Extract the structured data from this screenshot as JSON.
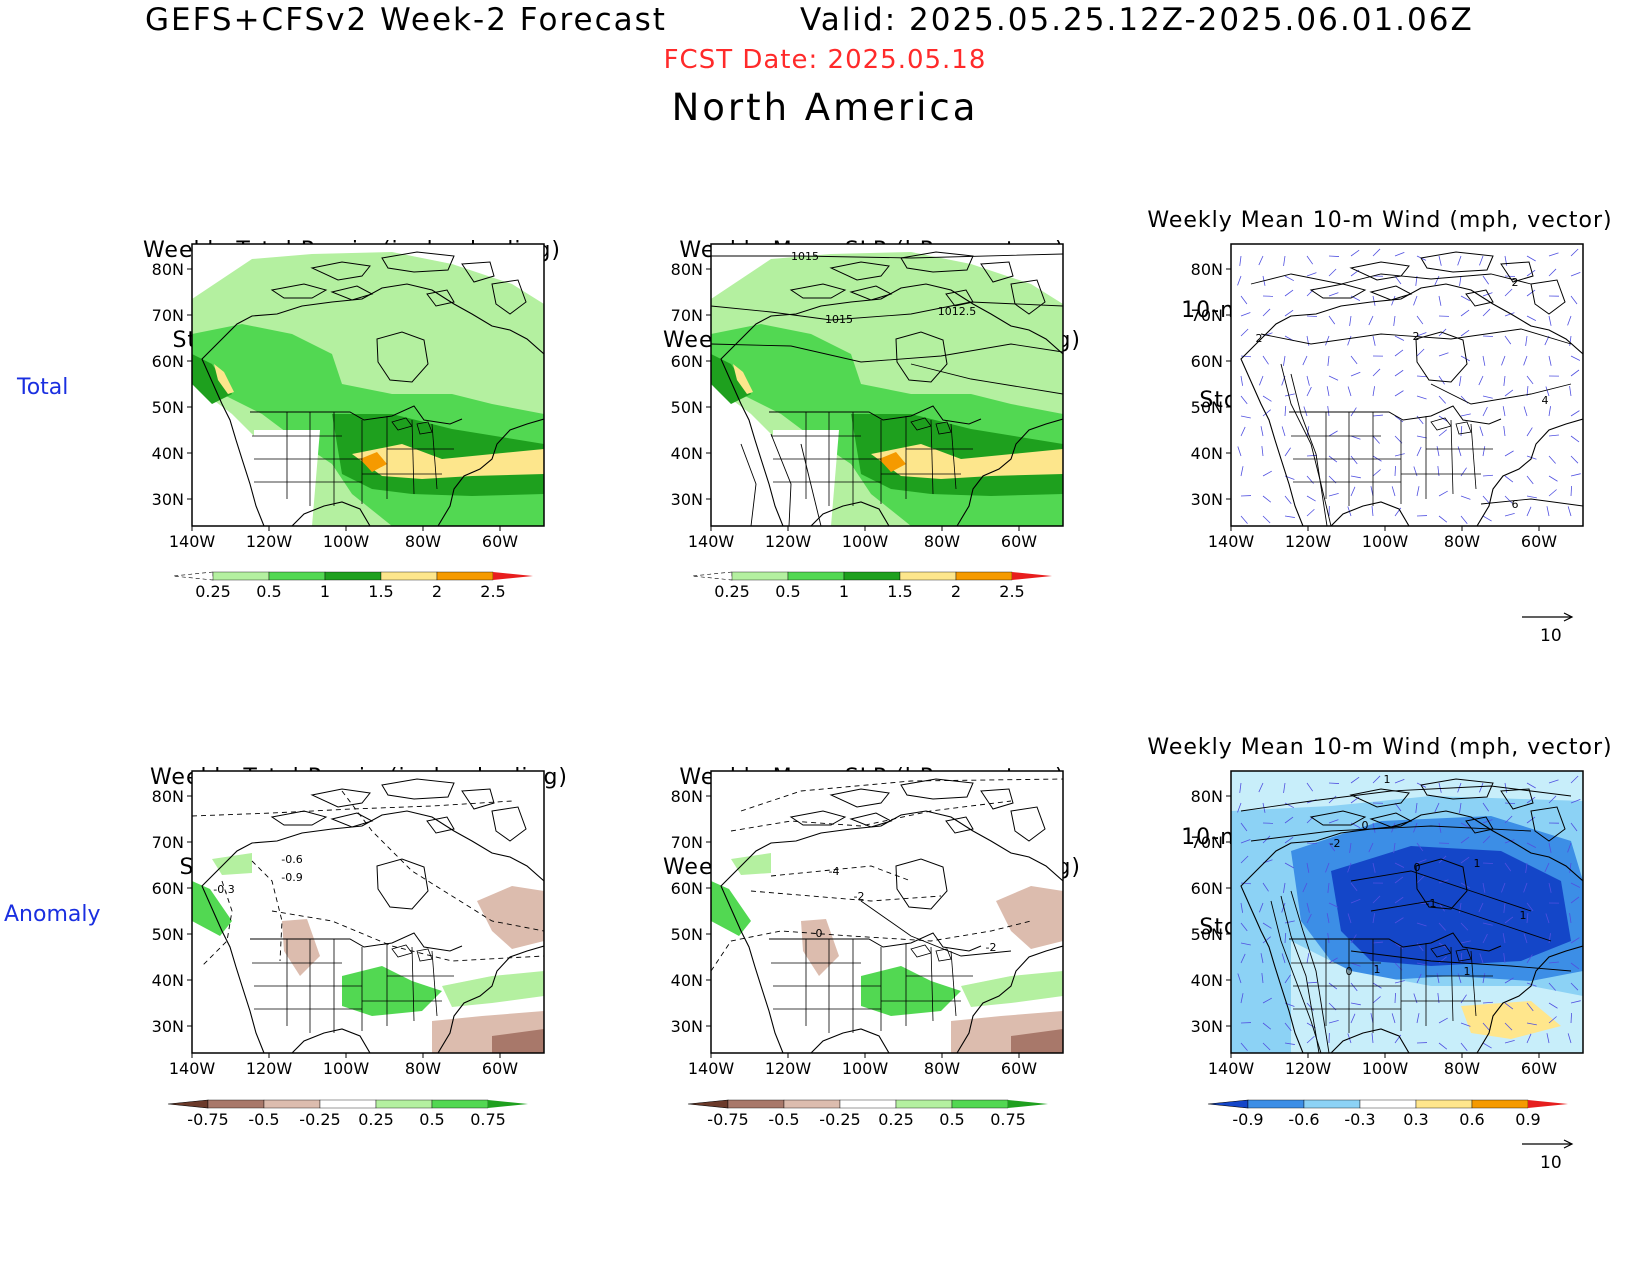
{
  "header": {
    "title_left": "GEFS+CFSv2 Week-2 Forecast",
    "title_right": "Valid: 2025.05.25.12Z-2025.06.01.06Z",
    "fcst_date": "FCST Date: 2025.05.18",
    "region": "North America"
  },
  "colors": {
    "fcst_date": "#ff2a2a",
    "row_label": "#1a2fe0",
    "vector": "#5050e0"
  },
  "rows": [
    {
      "label": "Total"
    },
    {
      "label": "Anomaly"
    }
  ],
  "axes": {
    "lat_ticks": [
      "80N",
      "70N",
      "60N",
      "50N",
      "40N",
      "30N"
    ],
    "lon_ticks": [
      "140W",
      "120W",
      "100W",
      "80W",
      "60W"
    ]
  },
  "panels": [
    {
      "id": "total-precip",
      "title_lines": [
        "Weekly Total Precip (inch, shading)",
        "Storm Track Density (contour)"
      ]
    },
    {
      "id": "total-slp",
      "title_lines": [
        "Weekly Mean SLP (hPa, contour)",
        "Weekly Total Precip (inch, shading)"
      ],
      "contour_labels": [
        "1015",
        "1015",
        "1012.5"
      ]
    },
    {
      "id": "total-wind",
      "title_lines": [
        "Weekly Mean 10-m Wind (mph, vector)",
        "10-m Wind Speed (mph, contour)",
        "Storm Track Density (shading)"
      ],
      "contour_labels": [
        "2",
        "2",
        "2",
        "4",
        "6"
      ]
    },
    {
      "id": "anom-precip",
      "title_lines": [
        "Weekly Total Precip (inch, shading)",
        "Storm Track Density (contour)"
      ],
      "contour_labels": [
        "-0.6",
        "-0.9",
        "-0.3"
      ]
    },
    {
      "id": "anom-slp",
      "title_lines": [
        "Weekly Mean SLP (hPa, contour)",
        "Weekly Total Precip (inch, shading)"
      ],
      "contour_labels": [
        "-4",
        "-2",
        "0",
        "-2"
      ]
    },
    {
      "id": "anom-wind",
      "title_lines": [
        "Weekly Mean 10-m Wind (mph, vector)",
        "10-m Wind Speed (mph, contour)",
        "Storm Track Density (shading)"
      ],
      "contour_labels": [
        "1",
        "0",
        "-2",
        "0",
        "1",
        "-1",
        "1",
        "1",
        "0",
        "1"
      ]
    }
  ],
  "colorbars": {
    "precip_total": {
      "labels": [
        "0.25",
        "0.5",
        "1",
        "1.5",
        "2",
        "2.5"
      ],
      "colors": [
        "#ffffff",
        "#b4f0a0",
        "#52d852",
        "#1ea01e",
        "#fde68c",
        "#f59a00",
        "#e81e1e"
      ]
    },
    "precip_anomaly": {
      "labels": [
        "-0.75",
        "-0.5",
        "-0.25",
        "0.25",
        "0.5",
        "0.75"
      ],
      "colors": [
        "#6b3a2a",
        "#a8786a",
        "#dcbcae",
        "#ffffff",
        "#b4f0a0",
        "#52d852",
        "#1ea01e"
      ]
    },
    "storm_anomaly": {
      "labels": [
        "-0.9",
        "-0.6",
        "-0.3",
        "0.3",
        "0.6",
        "0.9"
      ],
      "colors": [
        "#1446c8",
        "#3c8ee6",
        "#8cd2f5",
        "#ffffff",
        "#ffe68c",
        "#f59a00",
        "#e61e1e"
      ]
    }
  },
  "vector_ref": {
    "label": "10"
  }
}
